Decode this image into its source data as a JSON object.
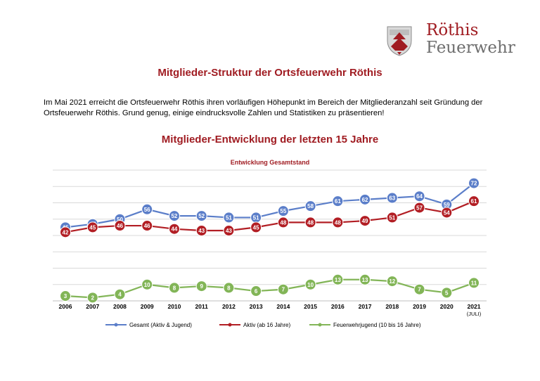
{
  "logo": {
    "line1": "Röthis",
    "line2": "Feuerwehr",
    "crest_icon": "coat-of-arms-icon",
    "colors": {
      "primary": "#a01c22",
      "secondary": "#6e6e6e"
    }
  },
  "document": {
    "title": "Mitglieder-Struktur der Ortsfeuerwehr Röthis",
    "intro": "Im Mai 2021 erreicht die Ortsfeuerwehr Röthis ihren vorläufigen Höhepunkt im Bereich der Mitgliederanzahl seit Gründung der Ortsfeuerwehr Röthis. Grund genug, einige eindrucksvolle Zahlen und Statistiken zu präsentieren!",
    "section_title": "Mitglieder-Entwicklung der letzten 15 Jahre"
  },
  "chart_data": {
    "type": "line",
    "title": "Entwicklung Gesamtstand",
    "categories": [
      "2006",
      "2007",
      "2008",
      "2009",
      "2010",
      "2011",
      "2012",
      "2013",
      "2014",
      "2015",
      "2016",
      "2017",
      "2018",
      "2019",
      "2020",
      "2021"
    ],
    "category_sublabels": {
      "15": "(JULI)"
    },
    "series": [
      {
        "name": "Gesamt (Aktiv & Jugend)",
        "color": "#5b7ec9",
        "values": [
          45,
          47,
          50,
          56,
          52,
          52,
          51,
          51,
          55,
          58,
          61,
          62,
          63,
          64,
          59,
          72
        ]
      },
      {
        "name": "Aktiv (ab 16 Jahre)",
        "color": "#b21e24",
        "values": [
          42,
          45,
          46,
          46,
          44,
          43,
          43,
          45,
          48,
          48,
          48,
          49,
          51,
          57,
          54,
          61
        ]
      },
      {
        "name": "Feuerwehrjugend (10 bis 16 Jahre)",
        "color": "#82b557",
        "values": [
          3,
          2,
          4,
          10,
          8,
          9,
          8,
          6,
          7,
          10,
          13,
          13,
          12,
          7,
          5,
          11
        ]
      }
    ],
    "ylim": [
      0,
      80
    ],
    "grid": true,
    "legend": "bottom",
    "data_labels": true
  }
}
